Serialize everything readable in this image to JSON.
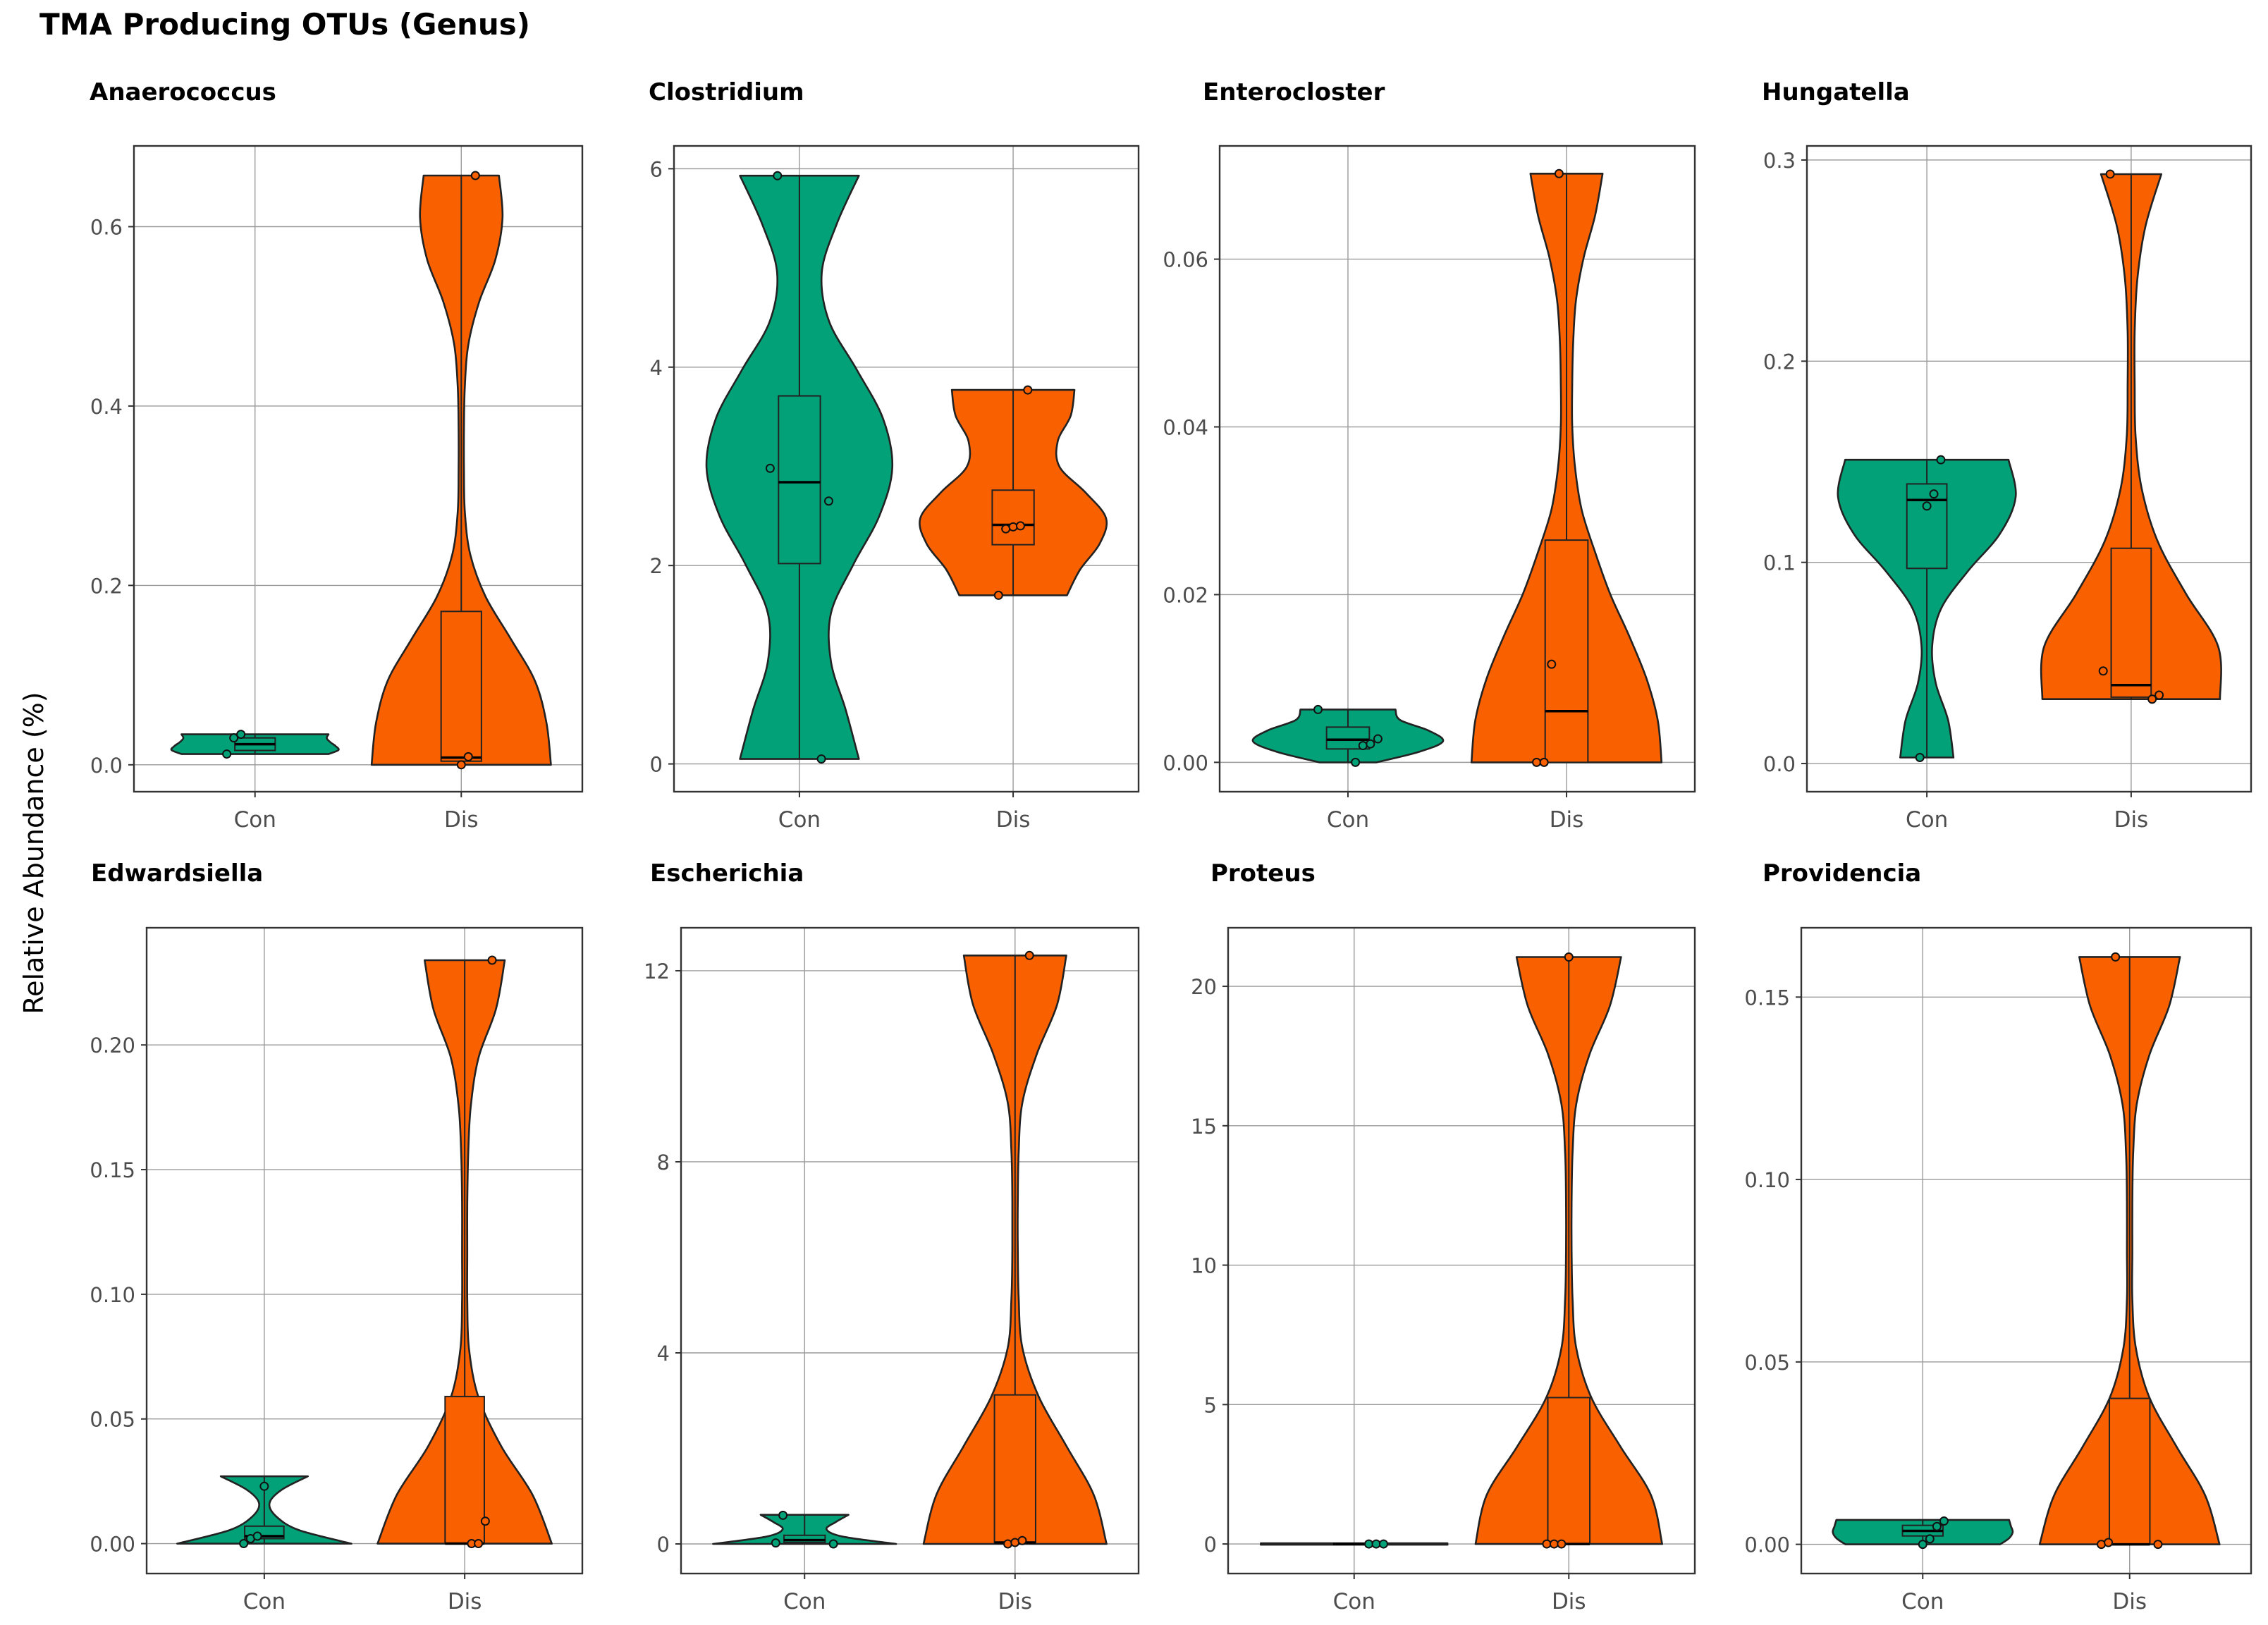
{
  "figure": {
    "title": "TMA Producing OTUs (Genus)",
    "ylabel": "Relative Abundance (%)"
  },
  "colors": {
    "Con": "#03A178",
    "Dis": "#F96000",
    "stroke": "#222222",
    "grid": "#9a9a9a"
  },
  "chart_data": [
    {
      "type": "violin",
      "title": "Anaerococcus",
      "categories": [
        "Con",
        "Dis"
      ],
      "ylim": [
        -0.03,
        0.69
      ],
      "ticks": [
        0.0,
        0.2,
        0.4,
        0.6
      ],
      "tick_labels": [
        "0.0",
        "0.2",
        "0.4",
        "0.6"
      ],
      "groups": [
        {
          "name": "Con",
          "min": 0.012,
          "max": 0.034,
          "q1": 0.016,
          "median": 0.023,
          "q3": 0.03,
          "points": [
            0.012,
            0.03,
            0.034
          ],
          "width_profile": [
            0.82,
            0.93,
            0.9,
            0.84,
            0.8,
            0.82
          ]
        },
        {
          "name": "Dis",
          "min": 0.0,
          "max": 0.657,
          "q1": 0.004,
          "median": 0.008,
          "q3": 0.171,
          "points": [
            0.0,
            0.009,
            0.657
          ],
          "width_profile": [
            1.0,
            0.95,
            0.82,
            0.55,
            0.27,
            0.1,
            0.04,
            0.03,
            0.03,
            0.04,
            0.08,
            0.2,
            0.38,
            0.46,
            0.42
          ]
        }
      ]
    },
    {
      "type": "violin",
      "title": "Clostridium",
      "categories": [
        "Con",
        "Dis"
      ],
      "ylim": [
        -0.28,
        6.23
      ],
      "ticks": [
        0,
        2,
        4,
        6
      ],
      "tick_labels": [
        "0",
        "2",
        "4",
        "6"
      ],
      "groups": [
        {
          "name": "Con",
          "min": 0.05,
          "max": 5.93,
          "q1": 2.02,
          "median": 2.84,
          "q3": 3.71,
          "points": [
            0.05,
            2.65,
            2.98,
            5.93
          ],
          "width_profile": [
            0.64,
            0.5,
            0.34,
            0.34,
            0.58,
            0.86,
            1.0,
            0.9,
            0.62,
            0.32,
            0.24,
            0.4,
            0.64
          ]
        },
        {
          "name": "Dis",
          "min": 1.7,
          "max": 3.77,
          "q1": 2.21,
          "median": 2.41,
          "q3": 2.76,
          "points": [
            1.7,
            2.37,
            2.39,
            2.4,
            3.77
          ],
          "width_profile": [
            0.58,
            0.72,
            0.93,
            1.0,
            0.78,
            0.5,
            0.48,
            0.62,
            0.66
          ]
        }
      ]
    },
    {
      "type": "violin",
      "title": "Enterocloster",
      "categories": [
        "Con",
        "Dis"
      ],
      "ylim": [
        -0.0035,
        0.0735
      ],
      "ticks": [
        0.0,
        0.02,
        0.04,
        0.06
      ],
      "tick_labels": [
        "0.00",
        "0.02",
        "0.04",
        "0.06"
      ],
      "groups": [
        {
          "name": "Con",
          "min": 0.0,
          "max": 0.0063,
          "q1": 0.0016,
          "median": 0.0027,
          "q3": 0.0042,
          "points": [
            0.0,
            0.002,
            0.0022,
            0.0028,
            0.0063
          ],
          "width_profile": [
            0.3,
            0.75,
            1.0,
            0.85,
            0.55,
            0.5
          ]
        },
        {
          "name": "Dis",
          "min": 0.0,
          "max": 0.0702,
          "q1": 0.0,
          "median": 0.0061,
          "q3": 0.0265,
          "points": [
            0.0,
            0.0,
            0.0117,
            0.0702
          ],
          "width_profile": [
            1.0,
            0.96,
            0.84,
            0.66,
            0.46,
            0.3,
            0.16,
            0.09,
            0.06,
            0.06,
            0.07,
            0.1,
            0.18,
            0.3,
            0.38
          ]
        }
      ]
    },
    {
      "type": "violin",
      "title": "Hungatella",
      "categories": [
        "Con",
        "Dis"
      ],
      "ylim": [
        -0.014,
        0.307
      ],
      "ticks": [
        0.0,
        0.1,
        0.2,
        0.3
      ],
      "tick_labels": [
        "0.0",
        "0.1",
        "0.2",
        "0.3"
      ],
      "groups": [
        {
          "name": "Con",
          "min": 0.003,
          "max": 0.151,
          "q1": 0.097,
          "median": 0.131,
          "q3": 0.139,
          "points": [
            0.003,
            0.128,
            0.134,
            0.151
          ],
          "width_profile": [
            0.3,
            0.24,
            0.1,
            0.06,
            0.16,
            0.46,
            0.82,
            1.0,
            0.92
          ]
        },
        {
          "name": "Dis",
          "min": 0.032,
          "max": 0.293,
          "q1": 0.033,
          "median": 0.039,
          "q3": 0.107,
          "points": [
            0.032,
            0.034,
            0.046,
            0.293
          ],
          "width_profile": [
            1.0,
            0.98,
            0.62,
            0.3,
            0.12,
            0.05,
            0.04,
            0.04,
            0.07,
            0.16,
            0.34
          ]
        }
      ]
    },
    {
      "type": "violin",
      "title": "Edwardsiella",
      "categories": [
        "Con",
        "Dis"
      ],
      "ylim": [
        -0.012,
        0.247
      ],
      "ticks": [
        0.0,
        0.05,
        0.1,
        0.15,
        0.2
      ],
      "tick_labels": [
        "0.00",
        "0.05",
        "0.10",
        "0.15",
        "0.20"
      ],
      "groups": [
        {
          "name": "Con",
          "min": 0.0,
          "max": 0.027,
          "q1": 0.002,
          "median": 0.003,
          "q3": 0.007,
          "points": [
            0.0,
            0.002,
            0.003,
            0.023
          ],
          "width_profile": [
            1.0,
            0.4,
            0.14,
            0.06,
            0.2,
            0.5
          ]
        },
        {
          "name": "Dis",
          "min": 0.0,
          "max": 0.234,
          "q1": 0.0,
          "median": 0.0,
          "q3": 0.059,
          "points": [
            0.0,
            0.0,
            0.009,
            0.234
          ],
          "width_profile": [
            1.0,
            0.78,
            0.42,
            0.16,
            0.05,
            0.03,
            0.03,
            0.03,
            0.04,
            0.07,
            0.16,
            0.36,
            0.46
          ]
        }
      ]
    },
    {
      "type": "violin",
      "title": "Escherichia",
      "categories": [
        "Con",
        "Dis"
      ],
      "ylim": [
        -0.62,
        12.9
      ],
      "ticks": [
        0,
        4,
        8,
        12
      ],
      "tick_labels": [
        "0",
        "4",
        "8",
        "12"
      ],
      "groups": [
        {
          "name": "Con",
          "min": 0.0,
          "max": 0.61,
          "q1": 0.03,
          "median": 0.08,
          "q3": 0.18,
          "points": [
            0.0,
            0.02,
            0.6
          ],
          "width_profile": [
            1.0,
            0.42,
            0.24,
            0.34,
            0.48
          ]
        },
        {
          "name": "Dis",
          "min": 0.0,
          "max": 12.32,
          "q1": 0.0,
          "median": 0.03,
          "q3": 3.12,
          "points": [
            0.0,
            0.03,
            0.07,
            12.32
          ],
          "width_profile": [
            1.0,
            0.86,
            0.56,
            0.26,
            0.08,
            0.04,
            0.03,
            0.03,
            0.04,
            0.08,
            0.24,
            0.46,
            0.56
          ]
        }
      ]
    },
    {
      "type": "violin",
      "title": "Proteus",
      "categories": [
        "Con",
        "Dis"
      ],
      "ylim": [
        -1.06,
        22.1
      ],
      "ticks": [
        0,
        5,
        10,
        15,
        20
      ],
      "tick_labels": [
        "0",
        "5",
        "10",
        "15",
        "20"
      ],
      "groups": [
        {
          "name": "Con",
          "min": 0.0,
          "max": 0.01,
          "q1": 0.0,
          "median": 0.0,
          "q3": 0.0,
          "points": [
            0.0,
            0.0,
            0.0
          ],
          "width_profile": [
            1.0,
            1.0
          ]
        },
        {
          "name": "Dis",
          "min": 0.0,
          "max": 21.05,
          "q1": 0.0,
          "median": 0.0,
          "q3": 5.25,
          "points": [
            0.0,
            0.0,
            0.0,
            21.05
          ],
          "width_profile": [
            1.0,
            0.88,
            0.55,
            0.24,
            0.08,
            0.04,
            0.03,
            0.03,
            0.04,
            0.08,
            0.22,
            0.44,
            0.56
          ]
        }
      ]
    },
    {
      "type": "violin",
      "title": "Providencia",
      "categories": [
        "Con",
        "Dis"
      ],
      "ylim": [
        -0.008,
        0.169
      ],
      "ticks": [
        0.0,
        0.05,
        0.1,
        0.15
      ],
      "tick_labels": [
        "0.00",
        "0.05",
        "0.10",
        "0.15"
      ],
      "groups": [
        {
          "name": "Con",
          "min": 0.0,
          "max": 0.0067,
          "q1": 0.0023,
          "median": 0.0037,
          "q3": 0.0052,
          "points": [
            0.0,
            0.0015,
            0.0049,
            0.0064
          ],
          "width_profile": [
            0.86,
            0.96,
            1.0,
            0.98,
            0.96
          ]
        },
        {
          "name": "Dis",
          "min": 0.0,
          "max": 0.161,
          "q1": 0.0,
          "median": 0.0,
          "q3": 0.04,
          "points": [
            0.0,
            0.0,
            0.0005,
            0.161
          ],
          "width_profile": [
            1.0,
            0.84,
            0.52,
            0.22,
            0.07,
            0.03,
            0.03,
            0.03,
            0.04,
            0.08,
            0.22,
            0.44,
            0.56
          ]
        }
      ]
    }
  ]
}
